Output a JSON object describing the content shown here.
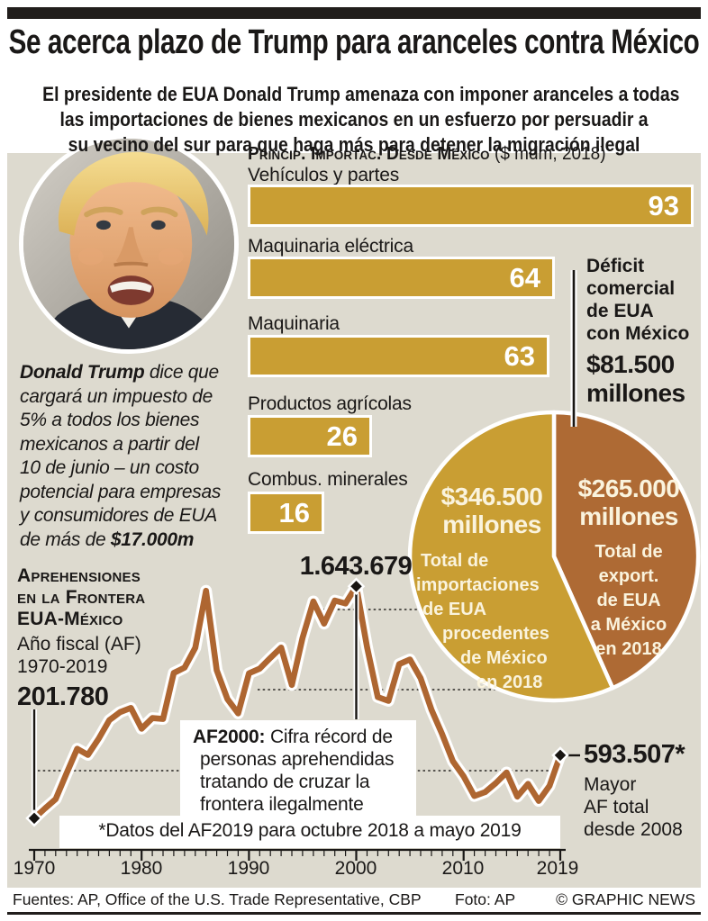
{
  "header": {
    "title": "Se acerca plazo de Trump para aranceles contra México",
    "subtitle_lines": [
      "El presidente de EUA Donald Trump amenaza con imponer aranceles a todas",
      "las importaciones de bienes mexicanos en un esfuerzo por persuadir a",
      "su vecino del sur para que haga más para detener la migración ilegal"
    ]
  },
  "trump_note": {
    "line1_bold": "Donald Trump",
    "line1_rest": " dice que",
    "middle_lines": [
      "cargará un impuesto de",
      "5% a todos los bienes",
      "mexicanos a partir del",
      "10 de junio – un costo",
      "potencial para empresas",
      "y consumidores de EUA"
    ],
    "last_line_pre": "de más de ",
    "last_line_bold": "$17.000m"
  },
  "deficit": {
    "lines": [
      "Déficit",
      "comercial",
      "de EUA",
      "con México"
    ],
    "amount_line1": "$81.500",
    "amount_line2": "millones"
  },
  "chart_data": [
    {
      "type": "bar",
      "title_smallcaps": "Princip. Importac. Desde México",
      "title_suffix": " ($ mdm, 2018)",
      "bars": [
        {
          "label": "Vehículos y partes",
          "value": 93
        },
        {
          "label": "Maquinaria eléctrica",
          "value": 64
        },
        {
          "label": "Maquinaria",
          "value": 63
        },
        {
          "label": "Productos agrícolas",
          "value": 26
        },
        {
          "label": "Combus. minerales",
          "value": 16
        }
      ],
      "unit": "$ mdm, 2018",
      "xlim": [
        0,
        93
      ],
      "bar_color": "#c99e33"
    },
    {
      "type": "pie",
      "slices": [
        {
          "name": "importaciones",
          "value": 346.5,
          "value_label": "$346.500",
          "value_label2": "millones",
          "desc_lines": [
            "Total de",
            "importaciones",
            "de EUA",
            "procedentes",
            "de México",
            "en 2018"
          ],
          "color": "#c99e33"
        },
        {
          "name": "exportaciones",
          "value": 265.0,
          "value_label": "$265.000",
          "value_label2": "millones",
          "desc_lines": [
            "Total de",
            "export.",
            "de EUA",
            "a México",
            "en 2018"
          ],
          "color": "#ae6a34"
        }
      ],
      "units": "millones de dólares"
    },
    {
      "type": "line",
      "title_lines_smallcaps": [
        "Aprehensiones",
        "en la Frontera",
        "EUA-México"
      ],
      "subtitle_lines": [
        "Año fiscal (AF)",
        "1970-2019"
      ],
      "years": [
        1970,
        1971,
        1972,
        1973,
        1974,
        1975,
        1976,
        1977,
        1978,
        1979,
        1980,
        1981,
        1982,
        1983,
        1984,
        1985,
        1986,
        1987,
        1988,
        1989,
        1990,
        1991,
        1992,
        1993,
        1994,
        1995,
        1996,
        1997,
        1998,
        1999,
        2000,
        2001,
        2002,
        2003,
        2004,
        2005,
        2006,
        2007,
        2008,
        2009,
        2010,
        2011,
        2012,
        2013,
        2014,
        2015,
        2016,
        2017,
        2018,
        2019
      ],
      "values_thousands": [
        202,
        263,
        321,
        480,
        634,
        596,
        696,
        812,
        862,
        888,
        759,
        825,
        819,
        1105,
        1138,
        1262,
        1616,
        1122,
        943,
        854,
        1103,
        1132,
        1199,
        1263,
        1031,
        1324,
        1550,
        1412,
        1555,
        1537,
        1644,
        1266,
        955,
        932,
        1160,
        1189,
        1072,
        877,
        724,
        556,
        463,
        340,
        365,
        421,
        487,
        337,
        416,
        310,
        404,
        594
      ],
      "start_label": "201.780",
      "peak_label": "1.643.679",
      "end_label": "593.507*",
      "end_sub_lines": [
        "Mayor",
        "AF total",
        "desde 2008"
      ],
      "annotation_bold": "AF2000:",
      "annotation_rest": " Cifra récord de",
      "annotation_lines": [
        "personas aprehendidas",
        "tratando de cruzar la",
        "frontera ilegalmente"
      ],
      "footnote": "*Datos del AF2019 para octubre 2018 a mayo 2019",
      "x_ticks": [
        "1970",
        "1980",
        "1990",
        "2000",
        "2010",
        "2019"
      ],
      "gridlines_thousands": [
        500,
        1000,
        1500
      ],
      "line_color": "#ae6631"
    }
  ],
  "footer": {
    "sources": "Fuentes: AP, Office of the U.S. Trade Representative, CBP",
    "photo_credit": "Foto: AP",
    "copyright": "© GRAPHIC NEWS"
  },
  "colors": {
    "accent_gold": "#c99e33",
    "accent_brown": "#ae6a34",
    "panel_background": "#dddacf",
    "ink": "#1a1817",
    "cream_text": "#faf3dd"
  }
}
